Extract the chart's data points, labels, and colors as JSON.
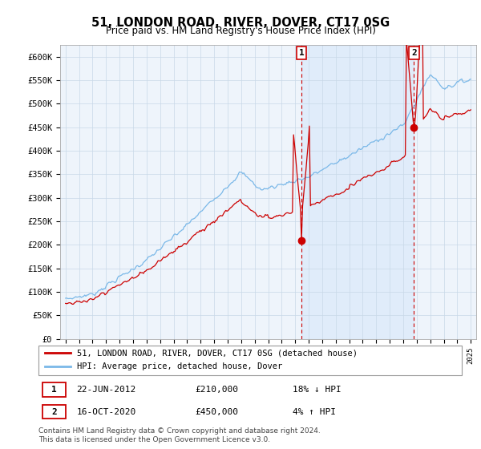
{
  "title": "51, LONDON ROAD, RIVER, DOVER, CT17 0SG",
  "subtitle": "Price paid vs. HM Land Registry's House Price Index (HPI)",
  "hpi_color": "#7ab8e8",
  "hpi_fill_color": "#dceeff",
  "price_color": "#cc0000",
  "annotation1_date": "22-JUN-2012",
  "annotation1_price": "£210,000",
  "annotation1_pct": "18% ↓ HPI",
  "annotation2_date": "16-OCT-2020",
  "annotation2_price": "£450,000",
  "annotation2_pct": "4% ↑ HPI",
  "legend1": "51, LONDON ROAD, RIVER, DOVER, CT17 0SG (detached house)",
  "legend2": "HPI: Average price, detached house, Dover",
  "footer": "Contains HM Land Registry data © Crown copyright and database right 2024.\nThis data is licensed under the Open Government Licence v3.0.",
  "ylim": [
    0,
    620000
  ],
  "yticks": [
    0,
    50000,
    100000,
    150000,
    200000,
    250000,
    300000,
    350000,
    400000,
    450000,
    500000,
    550000,
    600000
  ],
  "ytick_labels": [
    "£0",
    "£50K",
    "£100K",
    "£150K",
    "£200K",
    "£250K",
    "£300K",
    "£350K",
    "£400K",
    "£450K",
    "£500K",
    "£550K",
    "£600K"
  ],
  "t1": 2012.458,
  "t2": 2020.792,
  "p1": 210000,
  "p2": 450000
}
